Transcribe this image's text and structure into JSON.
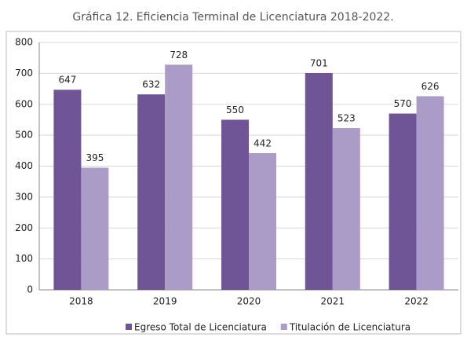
{
  "chart_data": {
    "type": "bar",
    "title": "Gráfica 12. Eficiencia Terminal de Licenciatura 2018-2022.",
    "categories": [
      "2018",
      "2019",
      "2020",
      "2021",
      "2022"
    ],
    "series": [
      {
        "name": "Egreso Total de Licenciatura",
        "color": "#6f5596",
        "values": [
          647,
          632,
          550,
          701,
          570
        ]
      },
      {
        "name": "Titulación de Licenciatura",
        "color": "#aa9cc6",
        "values": [
          395,
          728,
          442,
          523,
          626
        ]
      }
    ],
    "ylim": [
      0,
      800
    ],
    "yticks": [
      0,
      100,
      200,
      300,
      400,
      500,
      600,
      700,
      800
    ],
    "grid": true,
    "legend": "bottom"
  }
}
